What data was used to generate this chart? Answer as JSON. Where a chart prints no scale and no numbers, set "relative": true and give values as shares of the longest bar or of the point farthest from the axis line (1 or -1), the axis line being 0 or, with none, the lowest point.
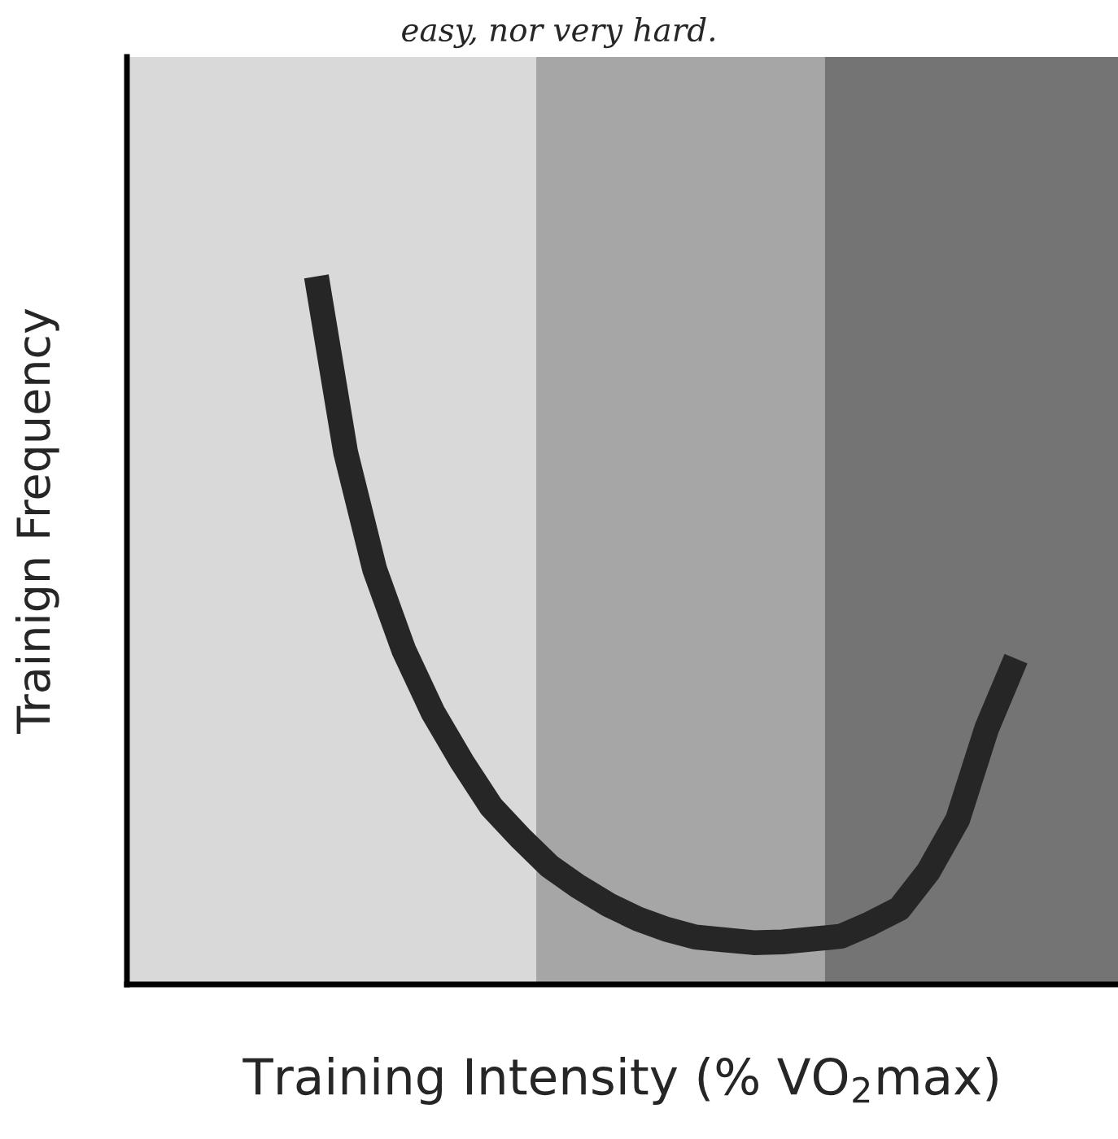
{
  "chart_data": {
    "type": "line",
    "title": "easy, nor very hard.",
    "xlabel": "Training Intensity (% VO$_{2}$max)",
    "ylabel": "Trainign Frequency",
    "relative": true,
    "categories": [
      null,
      null,
      null,
      null,
      null,
      null,
      null,
      null,
      null,
      null,
      null,
      null,
      null,
      null,
      null,
      null,
      null,
      null,
      null,
      null,
      null,
      null,
      null,
      null,
      null,
      null,
      null,
      null,
      null,
      null,
      null,
      null,
      null,
      null
    ],
    "series": [
      {
        "color": "#262626",
        "values": [
          null,
          null,
          null,
          null,
          null,
          null,
          1.0,
          0.752,
          0.586,
          0.472,
          0.384,
          0.314,
          0.251,
          0.207,
          0.167,
          0.138,
          0.113,
          0.093,
          0.078,
          0.067,
          0.063,
          0.059,
          0.06,
          0.064,
          0.068,
          0.086,
          0.107,
          0.16,
          0.233,
          0.362,
          0.46,
          null,
          null,
          null
        ]
      }
    ],
    "line_style": "solid"
  }
}
